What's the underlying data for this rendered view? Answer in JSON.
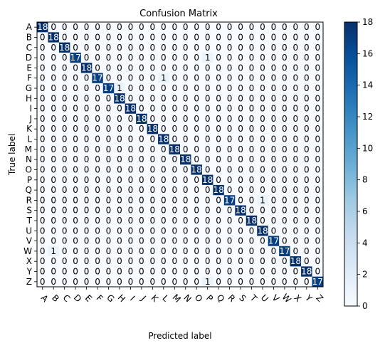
{
  "chart_data": {
    "type": "heatmap",
    "title": "Confusion Matrix",
    "xlabel": "Predicted label",
    "ylabel": "True label",
    "x_categories": [
      "A",
      "B",
      "C",
      "D",
      "E",
      "F",
      "G",
      "H",
      "I",
      "J",
      "K",
      "L",
      "M",
      "N",
      "O",
      "P",
      "Q",
      "R",
      "S",
      "T",
      "U",
      "V",
      "W",
      "X",
      "Y",
      "Z"
    ],
    "y_categories": [
      "A",
      "B",
      "C",
      "D",
      "E",
      "F",
      "G",
      "H",
      "I",
      "J",
      "K",
      "L",
      "M",
      "N",
      "O",
      "P",
      "Q",
      "R",
      "S",
      "T",
      "U",
      "V",
      "W",
      "X",
      "Y",
      "Z"
    ],
    "off_diagonal": [
      {
        "row": "D",
        "col": "P",
        "value": 1
      },
      {
        "row": "F",
        "col": "L",
        "value": 1
      },
      {
        "row": "G",
        "col": "H",
        "value": 1
      },
      {
        "row": "R",
        "col": "U",
        "value": 1
      },
      {
        "row": "W",
        "col": "B",
        "value": 1
      },
      {
        "row": "Z",
        "col": "P",
        "value": 1
      }
    ],
    "diagonal": [
      18,
      18,
      18,
      17,
      18,
      17,
      17,
      18,
      18,
      18,
      18,
      18,
      18,
      18,
      18,
      18,
      18,
      17,
      18,
      18,
      18,
      17,
      17,
      18,
      18,
      17
    ],
    "colorbar": {
      "cmap": "Blues",
      "range": [
        0,
        18
      ],
      "ticks": [
        0,
        2,
        4,
        6,
        8,
        10,
        12,
        14,
        16,
        18
      ]
    },
    "x_tick_rotation_deg": 45
  }
}
